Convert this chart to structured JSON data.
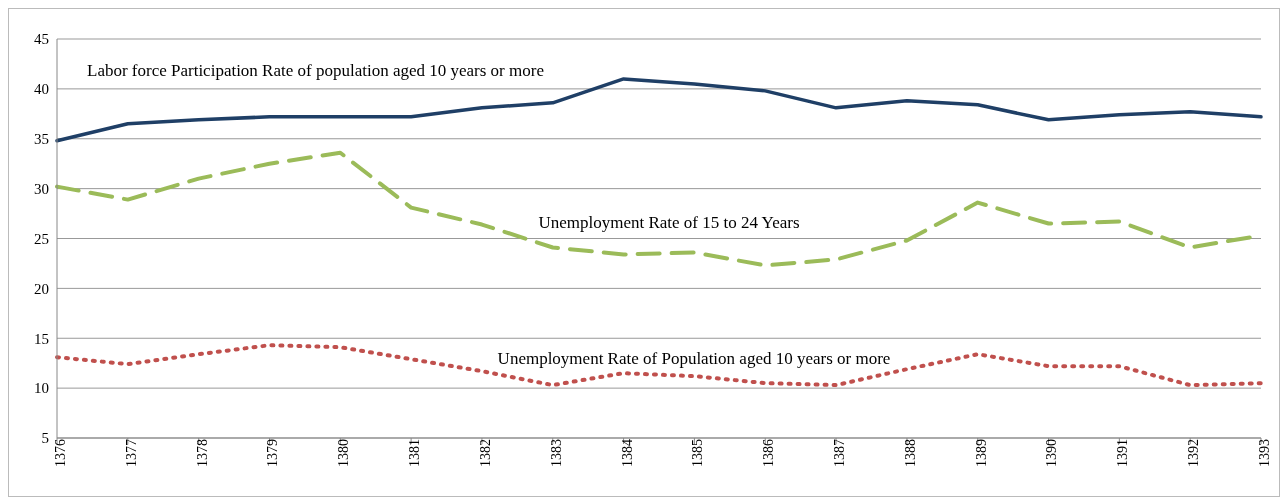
{
  "chart_data": {
    "type": "line",
    "categories": [
      "1376",
      "1377",
      "1378",
      "1379",
      "1380",
      "1381",
      "1382",
      "1383",
      "1384",
      "1385",
      "1386",
      "1387",
      "1388",
      "1389",
      "1390",
      "1391",
      "1392",
      "1393"
    ],
    "series": [
      {
        "name": "Labor force Participation Rate of population aged 10 years or more",
        "color": "#1f3f66",
        "line_style": "solid",
        "values": [
          34.8,
          36.5,
          36.9,
          37.2,
          37.2,
          37.2,
          38.1,
          38.6,
          41.0,
          40.5,
          39.8,
          38.1,
          38.8,
          38.4,
          36.9,
          37.4,
          37.7,
          37.2
        ]
      },
      {
        "name": "Unemployment Rate of 15 to 24 Years",
        "color": "#9bbb59",
        "line_style": "dashed",
        "values": [
          30.2,
          28.9,
          31.0,
          32.5,
          33.6,
          28.1,
          26.4,
          24.1,
          23.4,
          23.6,
          22.3,
          22.9,
          24.8,
          28.6,
          26.5,
          26.7,
          24.1,
          25.3
        ]
      },
      {
        "name": "Unemployment Rate of Population aged 10 years or more",
        "color": "#c0504d",
        "line_style": "dotted",
        "values": [
          13.1,
          12.4,
          13.4,
          14.3,
          14.1,
          12.9,
          11.7,
          10.3,
          11.5,
          11.2,
          10.5,
          10.3,
          11.9,
          13.4,
          12.2,
          12.2,
          10.3,
          10.5
        ]
      }
    ],
    "ylim": [
      5,
      45
    ],
    "yticks": [
      5,
      10,
      15,
      20,
      25,
      30,
      35,
      40,
      45
    ],
    "grid": "y",
    "marker": "none"
  }
}
